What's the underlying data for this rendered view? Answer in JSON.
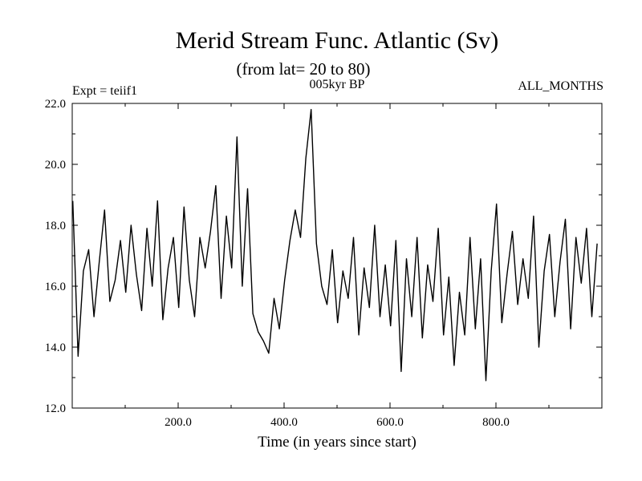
{
  "chart_data": {
    "type": "line",
    "title": "Merid Stream Func. Atlantic (Sv)",
    "subtitle": "(from lat= 20 to 80)",
    "left_note": "Expt = teiif1",
    "center_note": "005kyr BP",
    "right_note": "ALL_MONTHS",
    "xlabel": "Time (in years since start)",
    "ylabel": "",
    "xlim": [
      0,
      1000
    ],
    "ylim": [
      12.0,
      22.0
    ],
    "x_ticks": [
      200,
      400,
      600,
      800
    ],
    "x_tick_labels": [
      "200.0",
      "400.0",
      "600.0",
      "800.0"
    ],
    "y_ticks": [
      12,
      14,
      16,
      18,
      20,
      22
    ],
    "y_tick_labels": [
      "12.0",
      "14.0",
      "16.0",
      "18.0",
      "20.0",
      "22.0"
    ],
    "grid": false,
    "line_color": "#000000",
    "series": [
      {
        "x_start": 1,
        "x_step": 10,
        "values": [
          18.8,
          13.7,
          16.5,
          17.2,
          15.0,
          16.8,
          18.5,
          15.5,
          16.2,
          17.5,
          15.8,
          18.0,
          16.4,
          15.2,
          17.9,
          16.0,
          18.8,
          14.9,
          16.6,
          17.6,
          15.3,
          18.6,
          16.2,
          15.0,
          17.6,
          16.6,
          17.8,
          19.3,
          15.6,
          18.3,
          16.6,
          20.9,
          16.0,
          19.2,
          15.1,
          14.5,
          14.2,
          13.8,
          15.6,
          14.6,
          16.2,
          17.5,
          18.5,
          17.6,
          20.2,
          21.8,
          17.4,
          16.0,
          15.4,
          17.2,
          14.8,
          16.5,
          15.6,
          17.6,
          14.4,
          16.6,
          15.3,
          18.0,
          15.0,
          16.7,
          14.7,
          17.5,
          13.2,
          16.9,
          15.0,
          17.6,
          14.3,
          16.7,
          15.5,
          17.9,
          14.4,
          16.3,
          13.4,
          15.8,
          14.4,
          17.6,
          14.6,
          16.9,
          12.9,
          16.5,
          18.7,
          14.8,
          16.4,
          17.8,
          15.4,
          16.9,
          15.6,
          18.3,
          14.0,
          16.5,
          17.7,
          15.0,
          16.8,
          18.2,
          14.6,
          17.6,
          16.1,
          17.9,
          15.0,
          17.4
        ]
      }
    ]
  }
}
